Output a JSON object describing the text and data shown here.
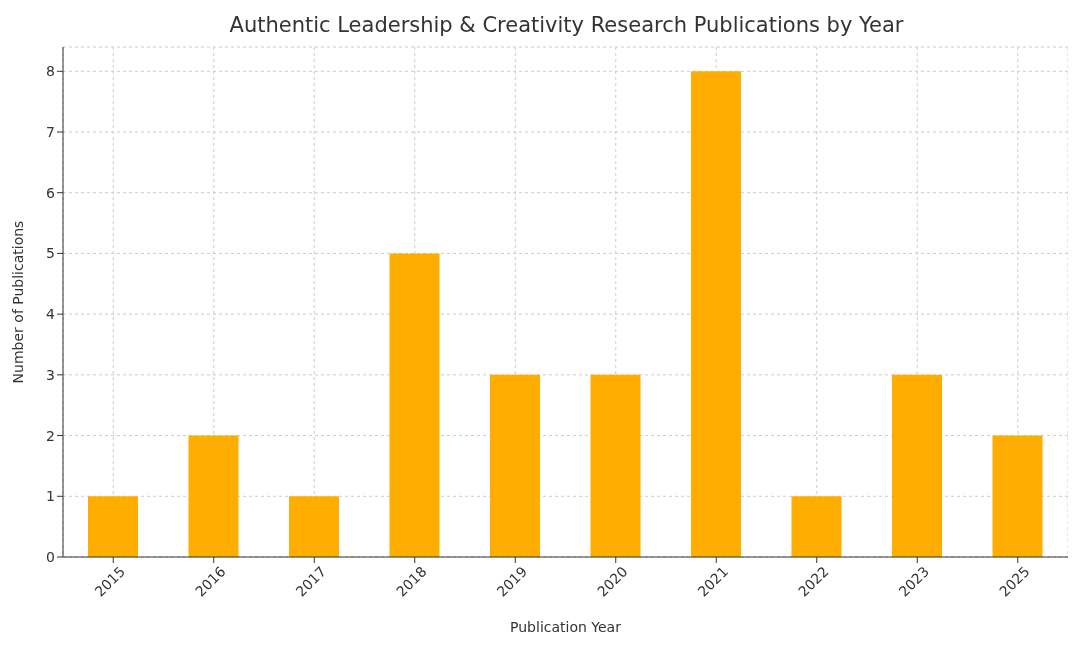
{
  "chart_data": {
    "type": "bar",
    "title": "Authentic Leadership & Creativity Research Publications by Year",
    "xlabel": "Publication Year",
    "ylabel": "Number of Publications",
    "categories": [
      "2015",
      "2016",
      "2017",
      "2018",
      "2019",
      "2020",
      "2021",
      "2022",
      "2023",
      "2025"
    ],
    "values": [
      1,
      2,
      1,
      5,
      3,
      3,
      8,
      1,
      3,
      2
    ],
    "color": "#ffad00",
    "ylim": [
      0,
      8.4
    ],
    "yticks": [
      0,
      1,
      2,
      3,
      4,
      5,
      6,
      7,
      8
    ],
    "grid": true
  }
}
